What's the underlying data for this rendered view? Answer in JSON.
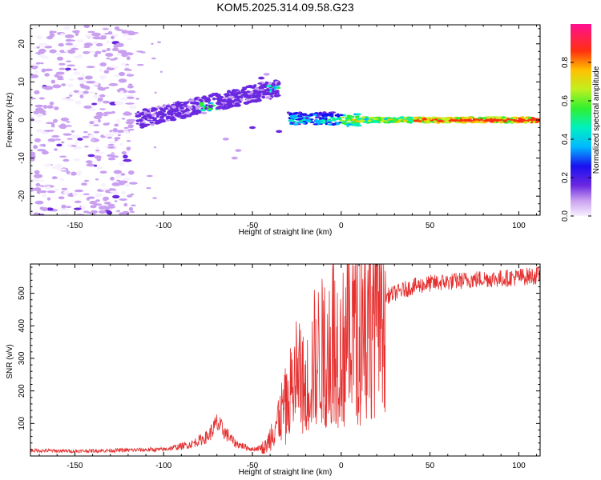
{
  "title": "KOM5.2025.314.09.58.G23",
  "colors": {
    "snr_line": "#e53030",
    "spectrogram_faint": "#c9a0f0",
    "spectrogram_mid": "#7a2ee0",
    "spectrogram_strong": "#ff1010"
  },
  "chart_data": [
    {
      "type": "heatmap",
      "name": "spectrogram",
      "xlabel": "Height of straight line (km)",
      "ylabel": "Frequency (Hz)",
      "xlim": [
        -175,
        112
      ],
      "ylim": [
        -25,
        25
      ],
      "x_ticks": [
        -150,
        -100,
        -50,
        0,
        50,
        100
      ],
      "x_tick_labels": [
        "-150",
        "-100",
        "-50",
        "0",
        "50",
        "100"
      ],
      "y_ticks": [
        -20,
        -10,
        0,
        10,
        20
      ],
      "y_tick_labels": [
        "-20",
        "-10",
        "0",
        "10",
        "20"
      ],
      "colorbar": {
        "label": "Normalized spectral amplitude",
        "range": [
          0,
          1
        ],
        "ticks": [
          0.0,
          0.2,
          0.4,
          0.6,
          0.8
        ],
        "tick_labels": [
          "0.0",
          "0.2",
          "0.4",
          "0.6",
          "0.8"
        ]
      },
      "features": [
        {
          "name": "weak noise cloud",
          "x_range": [
            -175,
            -120
          ],
          "freq_range": [
            -25,
            25
          ],
          "amplitude": 0.1
        },
        {
          "name": "rising trace",
          "x_range": [
            -115,
            -35
          ],
          "freq_range": [
            0,
            9
          ],
          "amplitude": 0.35
        },
        {
          "name": "carrier line",
          "x_range": [
            -30,
            112
          ],
          "freq": 0,
          "amplitude": 0.95
        }
      ]
    },
    {
      "type": "line",
      "name": "snr",
      "xlabel": "Height of straight line (km)",
      "ylabel": "SNR (v/v)",
      "xlim": [
        -175,
        112
      ],
      "ylim": [
        0,
        590
      ],
      "x_ticks": [
        -150,
        -100,
        -50,
        0,
        50,
        100
      ],
      "x_tick_labels": [
        "-150",
        "-100",
        "-50",
        "0",
        "50",
        "100"
      ],
      "y_ticks": [
        100,
        200,
        300,
        400,
        500
      ],
      "y_tick_labels": [
        "100",
        "200",
        "300",
        "400",
        "500"
      ],
      "series": [
        {
          "name": "SNR",
          "x": [
            -175,
            -150,
            -120,
            -100,
            -85,
            -75,
            -70,
            -60,
            -50,
            -42,
            -38,
            -30,
            -25,
            -20,
            -15,
            -10,
            -5,
            0,
            5,
            10,
            15,
            20,
            25,
            30,
            40,
            50,
            60,
            70,
            80,
            90,
            100,
            112
          ],
          "y": [
            17,
            15,
            18,
            20,
            35,
            60,
            100,
            40,
            20,
            30,
            90,
            170,
            260,
            200,
            300,
            320,
            390,
            310,
            420,
            440,
            450,
            470,
            490,
            500,
            520,
            530,
            535,
            540,
            545,
            545,
            550,
            555
          ]
        }
      ]
    }
  ]
}
